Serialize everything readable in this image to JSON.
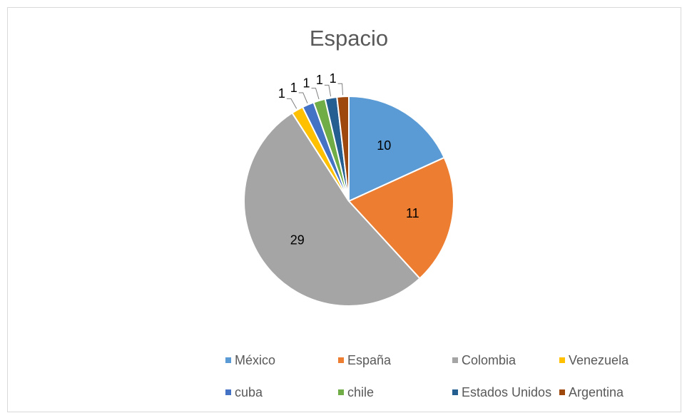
{
  "chart_data": {
    "type": "pie",
    "title": "Espacio",
    "categories": [
      "México",
      "España",
      "Colombia",
      "Venezuela",
      "cuba",
      "chile",
      "Estados Unidos",
      "Argentina"
    ],
    "values": [
      10,
      11,
      29,
      1,
      1,
      1,
      1,
      1
    ],
    "colors": [
      "#5b9bd5",
      "#ed7d31",
      "#a5a5a5",
      "#ffc000",
      "#4472c4",
      "#70ad47",
      "#255e91",
      "#9e480e"
    ],
    "legend": "bottom"
  }
}
